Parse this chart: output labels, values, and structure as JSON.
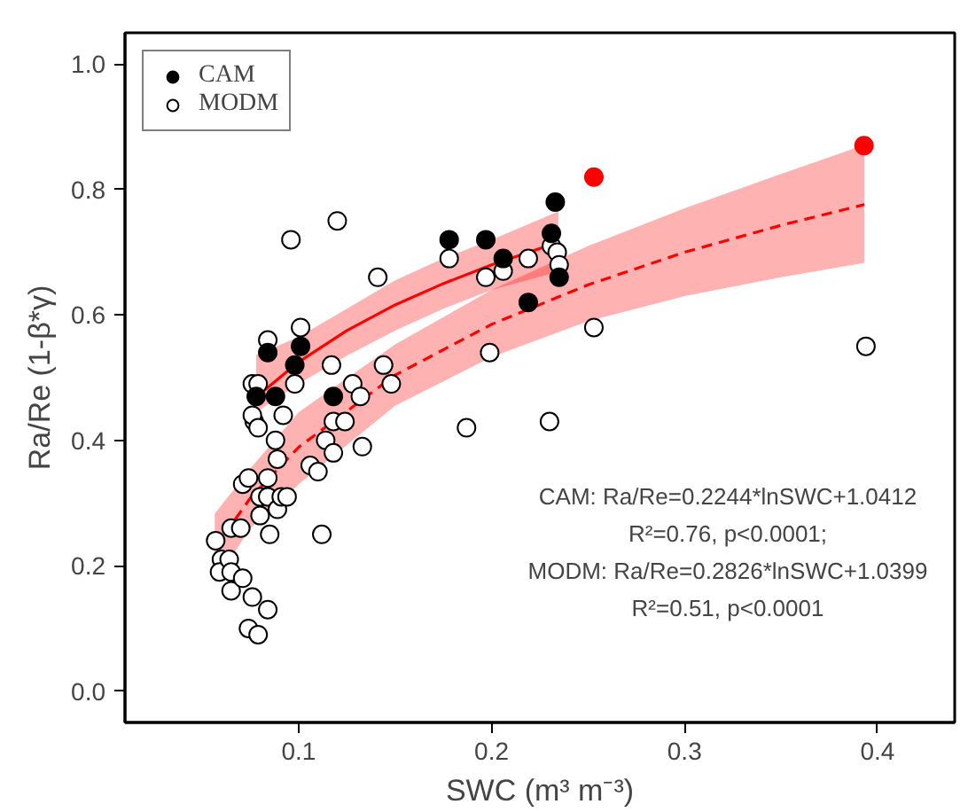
{
  "chart_data": {
    "type": "scatter",
    "xlabel": "SWC (m³ m⁻³)",
    "ylabel": "Ra/Re (1-β*γ)",
    "xlim": [
      0.01,
      0.44
    ],
    "ylim": [
      -0.05,
      1.05
    ],
    "xticks": [
      0.1,
      0.2,
      0.3,
      0.4
    ],
    "yticks": [
      {
        "value": 0,
        "label": "0.0"
      },
      0.2,
      0.4,
      0.6,
      0.8,
      {
        "value": 1,
        "label": "1.0"
      }
    ],
    "grid": false,
    "legend": "top left",
    "series": [
      {
        "type": "line",
        "color": "#ff0000",
        "line_style": "dashed",
        "x": [
          0.0565,
          0.075,
          0.1,
          0.15,
          0.2,
          0.25,
          0.3,
          0.35,
          0.3932
        ],
        "values": [
          0.228,
          0.308,
          0.389,
          0.504,
          0.585,
          0.648,
          0.7,
          0.743,
          0.776
        ],
        "lower": [
          0.173,
          0.26,
          0.33,
          0.455,
          0.533,
          0.59,
          0.63,
          0.66,
          0.683
        ],
        "upper": [
          0.283,
          0.355,
          0.445,
          0.553,
          0.64,
          0.71,
          0.77,
          0.825,
          0.871
        ]
      },
      {
        "type": "line",
        "color": "#ff0000",
        "line_style": "solid",
        "x": [
          0.078,
          0.1,
          0.125,
          0.15,
          0.175,
          0.2,
          0.2346
        ],
        "values": [
          0.469,
          0.525,
          0.575,
          0.616,
          0.65,
          0.68,
          0.716
        ],
        "lower": [
          0.445,
          0.49,
          0.535,
          0.575,
          0.61,
          0.64,
          0.669
        ],
        "upper": [
          0.536,
          0.565,
          0.61,
          0.655,
          0.69,
          0.72,
          0.765
        ]
      },
      {
        "name": "MODM",
        "color": "#ffffff",
        "marker": "circle",
        "x": [
          0.057,
          0.06,
          0.059,
          0.064,
          0.065,
          0.065,
          0.065,
          0.07,
          0.071,
          0.076,
          0.074,
          0.079,
          0.084,
          0.071,
          0.074,
          0.08,
          0.085,
          0.08,
          0.084,
          0.084,
          0.088,
          0.089,
          0.089,
          0.091,
          0.094,
          0.092,
          0.076,
          0.079,
          0.077,
          0.076,
          0.079,
          0.084,
          0.101,
          0.098,
          0.096,
          0.12,
          0.117,
          0.106,
          0.11,
          0.112,
          0.114,
          0.118,
          0.118,
          0.128,
          0.132,
          0.124,
          0.133,
          0.144,
          0.148,
          0.141,
          0.178,
          0.197,
          0.206,
          0.219,
          0.231,
          0.234,
          0.235,
          0.253,
          0.199,
          0.23,
          0.187,
          0.394
        ],
        "values": [
          0.24,
          0.21,
          0.19,
          0.21,
          0.16,
          0.19,
          0.26,
          0.26,
          0.18,
          0.15,
          0.1,
          0.09,
          0.13,
          0.33,
          0.34,
          0.28,
          0.25,
          0.31,
          0.34,
          0.31,
          0.4,
          0.37,
          0.29,
          0.31,
          0.31,
          0.44,
          0.49,
          0.49,
          0.43,
          0.44,
          0.42,
          0.56,
          0.58,
          0.49,
          0.72,
          0.75,
          0.52,
          0.36,
          0.35,
          0.25,
          0.4,
          0.38,
          0.43,
          0.49,
          0.47,
          0.43,
          0.39,
          0.52,
          0.49,
          0.66,
          0.69,
          0.66,
          0.67,
          0.69,
          0.71,
          0.7,
          0.68,
          0.58,
          0.54,
          0.43,
          0.42,
          0.55
        ]
      },
      {
        "name": "CAM",
        "color": "#000000",
        "marker": "circle",
        "x": [
          0.078,
          0.084,
          0.088,
          0.098,
          0.101,
          0.118,
          0.178,
          0.197,
          0.206,
          0.219,
          0.231,
          0.233,
          0.235
        ],
        "values": [
          0.47,
          0.54,
          0.47,
          0.52,
          0.55,
          0.47,
          0.72,
          0.72,
          0.69,
          0.62,
          0.73,
          0.78,
          0.66
        ]
      },
      {
        "color": "#ff0000",
        "marker": "circle",
        "x": [
          0.253,
          0.393
        ],
        "values": [
          0.82,
          0.87
        ]
      }
    ],
    "annotations": [
      "CAM: Ra/Re=0.2244*lnSWC+1.0412",
      "R²=0.76, p<0.0001;",
      "MODM: Ra/Re=0.2826*lnSWC+1.0399",
      "R²=0.51, p<0.0001"
    ]
  }
}
